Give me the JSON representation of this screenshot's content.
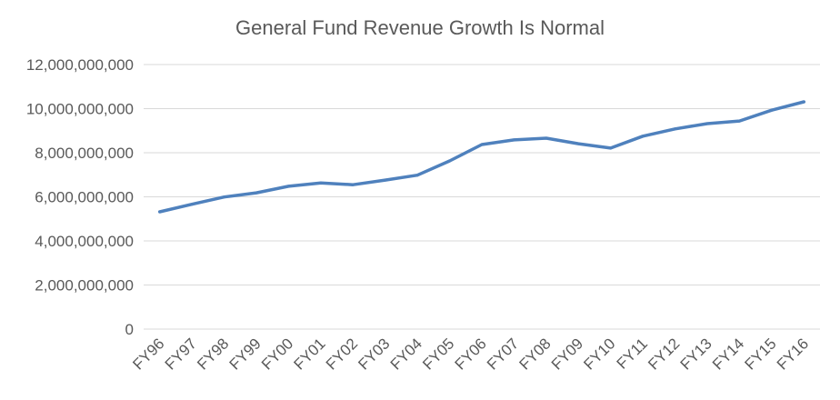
{
  "chart_data": {
    "type": "line",
    "title": "General Fund Revenue Growth Is Normal",
    "xlabel": "",
    "ylabel": "",
    "categories": [
      "FY96",
      "FY97",
      "FY98",
      "FY99",
      "FY00",
      "FY01",
      "FY02",
      "FY03",
      "FY04",
      "FY05",
      "FY06",
      "FY07",
      "FY08",
      "FY09",
      "FY10",
      "FY11",
      "FY12",
      "FY13",
      "FY14",
      "FY15",
      "FY16"
    ],
    "series": [
      {
        "values": [
          5320000000,
          5660000000,
          5990000000,
          6180000000,
          6480000000,
          6630000000,
          6550000000,
          6760000000,
          6980000000,
          7630000000,
          8370000000,
          8580000000,
          8660000000,
          8410000000,
          8210000000,
          8750000000,
          9080000000,
          9320000000,
          9440000000,
          9930000000,
          10310000000
        ],
        "color": "#4F81BD"
      }
    ],
    "ylim": [
      0,
      12000000000
    ],
    "yticks": [
      0,
      2000000000,
      4000000000,
      6000000000,
      8000000000,
      10000000000,
      12000000000
    ],
    "ytick_labels": [
      "0",
      "2,000,000,000",
      "4,000,000,000",
      "6,000,000,000",
      "8,000,000,000",
      "10,000,000,000",
      "12,000,000,000"
    ],
    "grid": true,
    "legend": "none",
    "colors": {
      "line": "#4F81BD",
      "grid": "#D9D9D9",
      "text": "#595959"
    }
  }
}
